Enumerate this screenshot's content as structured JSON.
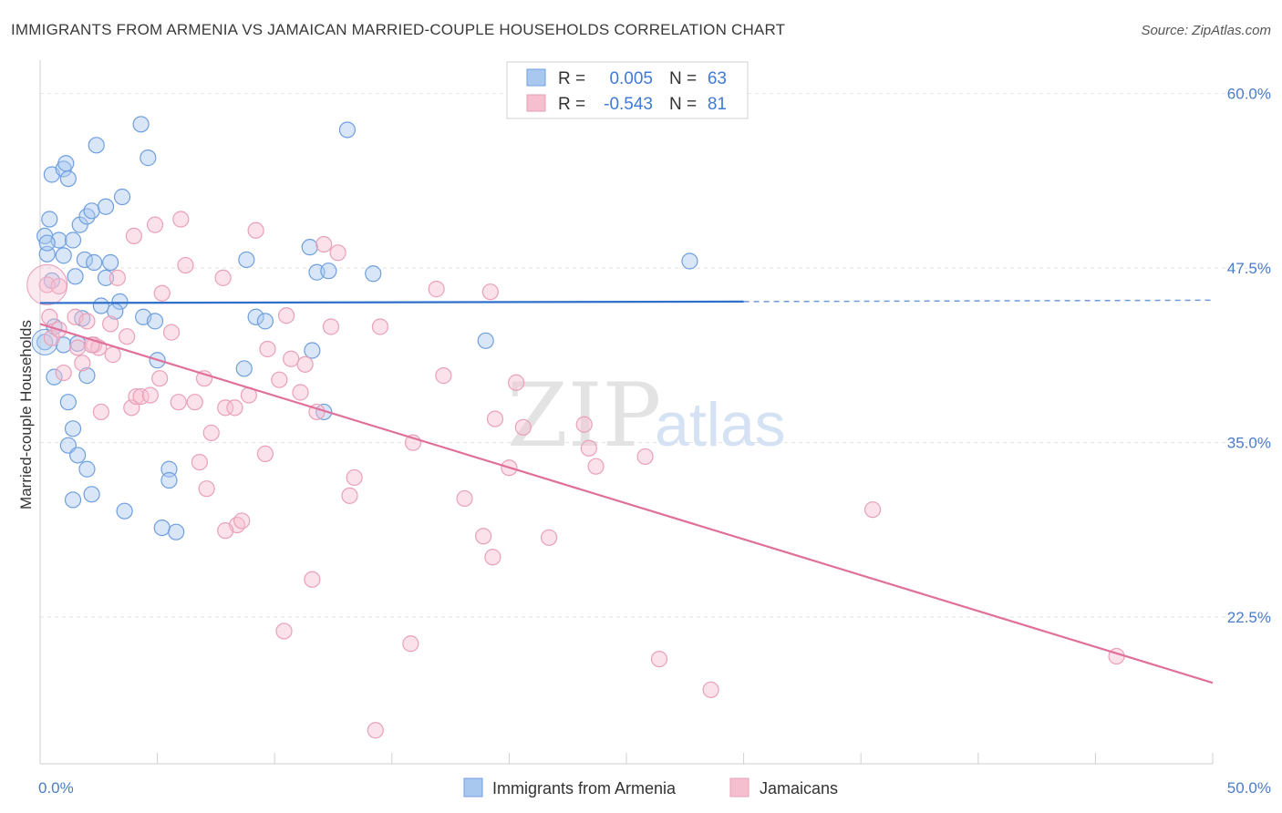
{
  "header": {
    "title": "IMMIGRANTS FROM ARMENIA VS JAMAICAN MARRIED-COUPLE HOUSEHOLDS CORRELATION CHART",
    "source": "Source: ZipAtlas.com"
  },
  "watermark": {
    "zip": "ZIP",
    "atlas": "atlas"
  },
  "colors": {
    "blue_fill": "#a9c8f0",
    "blue_stroke": "#6f9fde",
    "blue_line": "#2f6fcc",
    "pink_fill": "#f6bfd0",
    "pink_stroke": "#e9a0b8",
    "pink_line": "#e0709a",
    "tick_text": "#4a7cc7",
    "grid": "#e4e4e4"
  },
  "legend": {
    "rows": [
      {
        "r_label": "R =",
        "r_value": "0.005",
        "n_label": "N =",
        "n_value": "63"
      },
      {
        "r_label": "R =",
        "r_value": "-0.543",
        "n_label": "N =",
        "n_value": "81"
      }
    ]
  },
  "bottom_legend": {
    "items": [
      {
        "label": "Immigrants from Armenia"
      },
      {
        "label": "Jamaicans"
      }
    ]
  },
  "chart_data": {
    "type": "scatter",
    "title": "IMMIGRANTS FROM ARMENIA VS JAMAICAN MARRIED-COUPLE HOUSEHOLDS CORRELATION CHART",
    "xlabel": "",
    "ylabel": "Married-couple Households",
    "xlim": [
      0,
      50
    ],
    "ylim": [
      12,
      62
    ],
    "x_tick_labels": [
      "0.0%",
      "50.0%"
    ],
    "y_ticks": [
      {
        "value": 60.0,
        "label": "60.0%"
      },
      {
        "value": 47.5,
        "label": "47.5%"
      },
      {
        "value": 35.0,
        "label": "35.0%"
      },
      {
        "value": 22.5,
        "label": "22.5%"
      }
    ],
    "grid": "horizontal dashed",
    "legend_placement": "top-center",
    "series": [
      {
        "name": "Immigrants from Armenia",
        "color": "#a9c8f0",
        "r": 0.005,
        "n": 63,
        "trend": {
          "x": [
            0,
            30,
            50
          ],
          "y": [
            45.0,
            45.1,
            45.2
          ],
          "solid_until": 30
        },
        "points": [
          [
            0.2,
            49.8
          ],
          [
            0.3,
            48.5
          ],
          [
            0.5,
            46.6
          ],
          [
            0.4,
            51.0
          ],
          [
            0.5,
            54.2
          ],
          [
            0.8,
            49.5
          ],
          [
            1.0,
            48.4
          ],
          [
            1.0,
            54.6
          ],
          [
            1.2,
            53.9
          ],
          [
            1.1,
            55.0
          ],
          [
            1.4,
            49.5
          ],
          [
            1.5,
            46.9
          ],
          [
            1.7,
            50.6
          ],
          [
            1.9,
            48.1
          ],
          [
            2.0,
            51.2
          ],
          [
            2.2,
            51.6
          ],
          [
            2.3,
            47.9
          ],
          [
            2.8,
            51.9
          ],
          [
            2.8,
            46.8
          ],
          [
            2.4,
            56.3
          ],
          [
            3.0,
            47.9
          ],
          [
            3.5,
            52.6
          ],
          [
            4.3,
            57.8
          ],
          [
            4.6,
            55.4
          ],
          [
            3.4,
            45.1
          ],
          [
            4.4,
            44.0
          ],
          [
            4.9,
            43.7
          ],
          [
            5.0,
            40.9
          ],
          [
            2.6,
            44.8
          ],
          [
            0.6,
            43.3
          ],
          [
            1.0,
            42.0
          ],
          [
            1.2,
            37.9
          ],
          [
            1.4,
            36.0
          ],
          [
            1.2,
            34.8
          ],
          [
            1.6,
            34.1
          ],
          [
            2.0,
            33.1
          ],
          [
            2.2,
            31.3
          ],
          [
            1.4,
            30.9
          ],
          [
            3.6,
            30.1
          ],
          [
            5.2,
            28.9
          ],
          [
            5.5,
            33.1
          ],
          [
            5.5,
            32.3
          ],
          [
            5.8,
            28.6
          ],
          [
            0.6,
            39.7
          ],
          [
            1.6,
            42.1
          ],
          [
            1.8,
            43.9
          ],
          [
            8.7,
            40.3
          ],
          [
            8.8,
            48.1
          ],
          [
            9.2,
            44.0
          ],
          [
            9.6,
            43.7
          ],
          [
            11.5,
            49.0
          ],
          [
            11.8,
            47.2
          ],
          [
            12.3,
            47.3
          ],
          [
            11.6,
            41.6
          ],
          [
            12.1,
            37.2
          ],
          [
            13.1,
            57.4
          ],
          [
            14.2,
            47.1
          ],
          [
            19.0,
            42.3
          ],
          [
            27.7,
            48.0
          ],
          [
            3.2,
            44.4
          ],
          [
            2.0,
            39.8
          ],
          [
            0.2,
            42.2
          ],
          [
            0.3,
            49.3
          ]
        ]
      },
      {
        "name": "Jamaicans",
        "color": "#f6bfd0",
        "r": -0.543,
        "n": 81,
        "trend": {
          "x": [
            0,
            50
          ],
          "y": [
            43.5,
            17.8
          ]
        },
        "points": [
          [
            0.3,
            46.3
          ],
          [
            0.4,
            44.0
          ],
          [
            0.5,
            42.5
          ],
          [
            0.8,
            43.1
          ],
          [
            1.0,
            40.0
          ],
          [
            1.5,
            44.0
          ],
          [
            1.6,
            41.8
          ],
          [
            1.8,
            40.7
          ],
          [
            2.0,
            43.7
          ],
          [
            2.3,
            42.0
          ],
          [
            2.5,
            41.8
          ],
          [
            2.6,
            37.2
          ],
          [
            3.0,
            43.5
          ],
          [
            3.1,
            41.3
          ],
          [
            3.3,
            46.8
          ],
          [
            3.7,
            42.6
          ],
          [
            3.9,
            37.5
          ],
          [
            4.1,
            38.3
          ],
          [
            4.3,
            38.3
          ],
          [
            4.0,
            49.8
          ],
          [
            4.9,
            50.6
          ],
          [
            5.1,
            39.6
          ],
          [
            5.2,
            45.7
          ],
          [
            5.6,
            42.9
          ],
          [
            5.9,
            37.9
          ],
          [
            6.2,
            47.7
          ],
          [
            6.6,
            37.9
          ],
          [
            6.8,
            33.6
          ],
          [
            7.0,
            39.6
          ],
          [
            7.1,
            31.7
          ],
          [
            7.3,
            35.7
          ],
          [
            7.8,
            46.8
          ],
          [
            7.9,
            37.5
          ],
          [
            8.3,
            37.5
          ],
          [
            8.4,
            29.1
          ],
          [
            8.6,
            29.4
          ],
          [
            8.9,
            38.4
          ],
          [
            9.2,
            50.2
          ],
          [
            9.6,
            34.2
          ],
          [
            9.7,
            41.7
          ],
          [
            10.2,
            39.5
          ],
          [
            10.5,
            44.1
          ],
          [
            10.7,
            41.0
          ],
          [
            11.1,
            38.6
          ],
          [
            11.3,
            40.6
          ],
          [
            11.8,
            37.2
          ],
          [
            12.1,
            49.2
          ],
          [
            12.4,
            43.3
          ],
          [
            12.7,
            48.6
          ],
          [
            13.2,
            31.2
          ],
          [
            13.4,
            32.5
          ],
          [
            14.5,
            43.3
          ],
          [
            15.9,
            35.0
          ],
          [
            16.9,
            46.0
          ],
          [
            17.2,
            39.8
          ],
          [
            18.1,
            31.0
          ],
          [
            19.2,
            45.8
          ],
          [
            19.4,
            36.7
          ],
          [
            20.0,
            33.2
          ],
          [
            20.3,
            39.3
          ],
          [
            20.6,
            36.1
          ],
          [
            21.7,
            28.2
          ],
          [
            23.2,
            36.3
          ],
          [
            23.4,
            34.6
          ],
          [
            23.7,
            33.3
          ],
          [
            25.8,
            34.0
          ],
          [
            7.9,
            28.7
          ],
          [
            11.6,
            25.2
          ],
          [
            10.4,
            21.5
          ],
          [
            15.8,
            20.6
          ],
          [
            18.9,
            28.3
          ],
          [
            19.3,
            26.8
          ],
          [
            26.4,
            19.5
          ],
          [
            28.6,
            17.3
          ],
          [
            35.5,
            30.2
          ],
          [
            45.9,
            19.7
          ],
          [
            14.3,
            14.4
          ],
          [
            2.2,
            42.0
          ],
          [
            6.0,
            51.0
          ],
          [
            4.7,
            38.4
          ],
          [
            0.8,
            46.2
          ]
        ]
      }
    ]
  }
}
